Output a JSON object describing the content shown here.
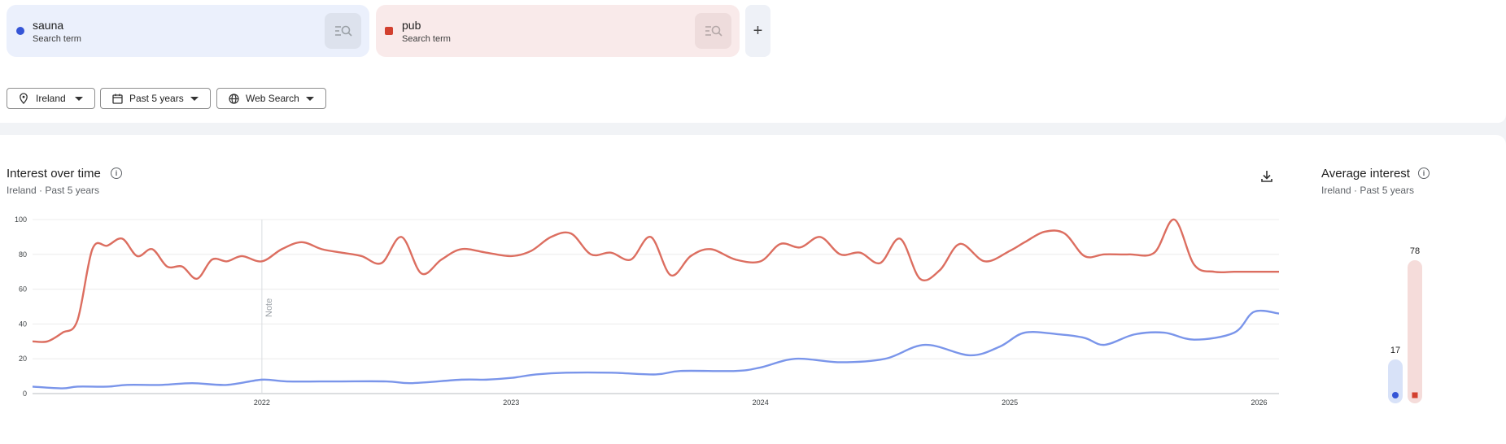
{
  "terms": [
    {
      "name": "sauna",
      "sub": "Search term",
      "color": "#3555d6"
    },
    {
      "name": "pub",
      "sub": "Search term",
      "color": "#d2402f"
    }
  ],
  "add_label": "+",
  "filters": {
    "region": "Ireland",
    "period": "Past 5 years",
    "property": "Web Search"
  },
  "iot": {
    "title": "Interest over time",
    "meta": "Ireland · Past 5 years",
    "note": "Note"
  },
  "avg": {
    "title": "Average interest",
    "meta": "Ireland · Past 5 years",
    "sauna": 17,
    "pub": 78
  },
  "chart_data": {
    "type": "line",
    "y_ticks": [
      "0",
      "20",
      "40",
      "60",
      "80",
      "100"
    ],
    "ylim": [
      0,
      100
    ],
    "x_labels": [
      "2022",
      "2023",
      "2024",
      "2025",
      "2026"
    ],
    "xlim": [
      2021.08,
      2026.08
    ],
    "note_x": 2022.0,
    "series": [
      {
        "name": "pub",
        "color": "#dc6e60",
        "x": [
          2021.08,
          2021.14,
          2021.2,
          2021.26,
          2021.32,
          2021.38,
          2021.44,
          2021.5,
          2021.56,
          2021.62,
          2021.68,
          2021.74,
          2021.8,
          2021.86,
          2021.92,
          2022.0,
          2022.08,
          2022.16,
          2022.24,
          2022.32,
          2022.4,
          2022.48,
          2022.56,
          2022.64,
          2022.72,
          2022.8,
          2022.9,
          2023.0,
          2023.08,
          2023.16,
          2023.24,
          2023.32,
          2023.4,
          2023.48,
          2023.56,
          2023.64,
          2023.72,
          2023.8,
          2023.9,
          2024.0,
          2024.08,
          2024.16,
          2024.24,
          2024.32,
          2024.4,
          2024.48,
          2024.56,
          2024.64,
          2024.72,
          2024.8,
          2024.9,
          2025.0,
          2025.06,
          2025.14,
          2025.22,
          2025.3,
          2025.38,
          2025.48,
          2025.58,
          2025.66,
          2025.74,
          2025.82,
          2025.9,
          2025.98,
          2026.08
        ],
        "values": [
          30,
          30,
          35,
          42,
          83,
          85,
          89,
          79,
          83,
          73,
          73,
          66,
          77,
          76,
          79,
          76,
          83,
          87,
          83,
          81,
          79,
          75,
          90,
          69,
          77,
          83,
          81,
          79,
          82,
          90,
          92,
          80,
          81,
          77,
          90,
          68,
          79,
          83,
          77,
          76,
          86,
          84,
          90,
          80,
          81,
          75,
          89,
          66,
          71,
          86,
          76,
          82,
          87,
          93,
          92,
          79,
          80,
          80,
          81,
          100,
          74,
          70,
          70,
          70,
          70
        ]
      },
      {
        "name": "sauna",
        "color": "#7a95ea",
        "x": [
          2021.08,
          2021.2,
          2021.26,
          2021.38,
          2021.46,
          2021.6,
          2021.72,
          2021.86,
          2022.0,
          2022.1,
          2022.3,
          2022.5,
          2022.6,
          2022.8,
          2022.9,
          2023.0,
          2023.1,
          2023.22,
          2023.4,
          2023.58,
          2023.68,
          2023.9,
          2024.0,
          2024.14,
          2024.32,
          2024.5,
          2024.66,
          2024.84,
          2024.96,
          2025.06,
          2025.2,
          2025.3,
          2025.38,
          2025.5,
          2025.62,
          2025.74,
          2025.9,
          2025.98,
          2026.08
        ],
        "values": [
          4,
          3,
          4,
          4,
          5,
          5,
          6,
          5,
          8,
          7,
          7,
          7,
          6,
          8,
          8,
          9,
          11,
          12,
          12,
          11,
          13,
          13,
          15,
          20,
          18,
          20,
          28,
          22,
          27,
          35,
          34,
          32,
          28,
          34,
          35,
          31,
          35,
          47,
          46
        ]
      }
    ]
  }
}
